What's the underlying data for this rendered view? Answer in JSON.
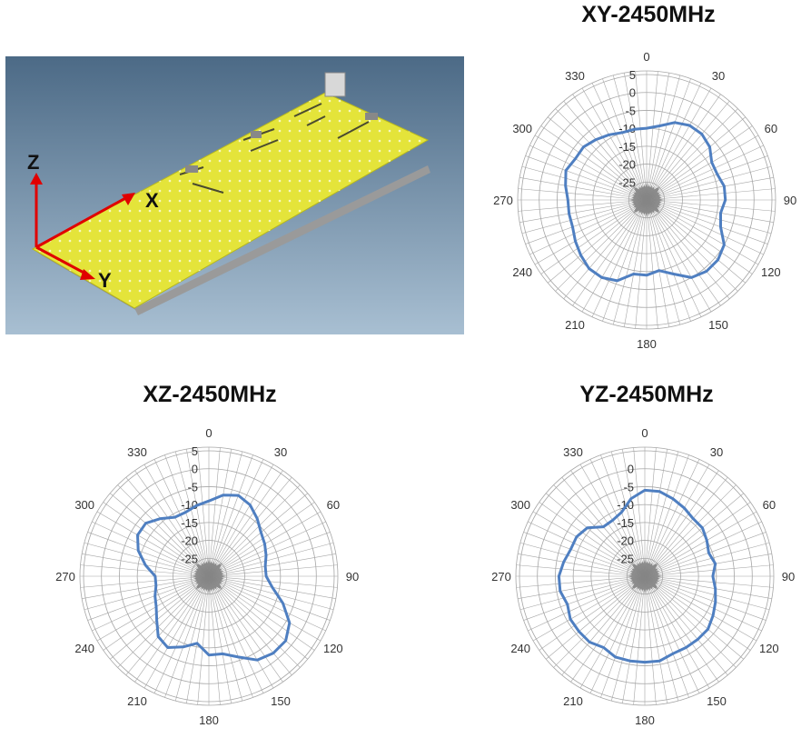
{
  "figure": {
    "axis_labels": {
      "z": "Z",
      "x": "X",
      "y": "Y"
    },
    "colors": {
      "series": "#4f7fc1",
      "grid": "#a6a6a6",
      "core": "#7f7f7f",
      "board": "#e4e43a",
      "backdrop_top": "#4c6a86",
      "backdrop_bottom": "#a8bfd2",
      "arrow": "#e00000"
    }
  },
  "chart_data": [
    {
      "type": "polar-line",
      "title": "XY-2450MHz",
      "angle_ticks": [
        "0",
        "30",
        "60",
        "90",
        "120",
        "150",
        "180",
        "210",
        "240",
        "270",
        "300",
        "330"
      ],
      "radial_ticks": [
        "5",
        "0",
        "-5",
        "-10",
        "-15",
        "-20",
        "-25"
      ],
      "rlim": [
        -30,
        5
      ],
      "grid": true,
      "series": [
        {
          "theta": [
            0,
            10,
            20,
            30,
            40,
            50,
            60,
            70,
            80,
            90,
            100,
            110,
            120,
            130,
            140,
            150,
            160,
            170,
            180,
            190,
            200,
            210,
            220,
            230,
            240,
            250,
            260,
            270,
            280,
            290,
            300,
            310,
            320,
            330,
            340,
            350
          ],
          "r": [
            -10,
            -9,
            -7,
            -6,
            -6,
            -7,
            -9,
            -9,
            -8,
            -8,
            -9,
            -8,
            -5,
            -4,
            -4,
            -5,
            -8,
            -10,
            -9,
            -9,
            -6,
            -5,
            -5,
            -6,
            -7,
            -8,
            -8,
            -8,
            -7,
            -6,
            -7,
            -7,
            -8,
            -9,
            -10,
            -10
          ]
        }
      ]
    },
    {
      "type": "polar-line",
      "title": "XZ-2450MHz",
      "angle_ticks": [
        "0",
        "30",
        "60",
        "90",
        "120",
        "150",
        "180",
        "210",
        "240",
        "270",
        "300",
        "330"
      ],
      "radial_ticks": [
        "5",
        "0",
        "-5",
        "-10",
        "-15",
        "-20",
        "-25"
      ],
      "rlim": [
        -30,
        5
      ],
      "grid": true,
      "series": [
        {
          "theta": [
            0,
            10,
            20,
            30,
            40,
            50,
            60,
            70,
            80,
            90,
            100,
            110,
            120,
            130,
            140,
            150,
            160,
            170,
            180,
            190,
            200,
            210,
            220,
            230,
            240,
            250,
            260,
            270,
            280,
            290,
            300,
            310,
            320,
            330,
            340,
            350
          ],
          "r": [
            -9,
            -7,
            -6,
            -7,
            -9,
            -11,
            -12,
            -13,
            -14,
            -14,
            -12,
            -8,
            -4,
            -2,
            -2,
            -3,
            -6,
            -8,
            -8,
            -11,
            -9,
            -7,
            -8,
            -11,
            -13,
            -14,
            -15,
            -15,
            -12,
            -9,
            -7,
            -7,
            -9,
            -11,
            -11,
            -10
          ]
        }
      ]
    },
    {
      "type": "polar-line",
      "title": "YZ-2450MHz",
      "angle_ticks": [
        "0",
        "30",
        "60",
        "90",
        "120",
        "150",
        "180",
        "210",
        "240",
        "270",
        "300",
        "330"
      ],
      "radial_ticks": [
        "0",
        "-5",
        "-10",
        "-15",
        "-20",
        "-25"
      ],
      "rlim": [
        -30,
        5
      ],
      "grid": true,
      "series": [
        {
          "theta": [
            0,
            10,
            20,
            30,
            40,
            50,
            60,
            70,
            80,
            90,
            100,
            110,
            120,
            130,
            140,
            150,
            160,
            170,
            180,
            190,
            200,
            210,
            220,
            230,
            240,
            250,
            260,
            270,
            280,
            290,
            300,
            310,
            320,
            330,
            340,
            350
          ],
          "r": [
            -6,
            -6,
            -7,
            -8,
            -9,
            -9,
            -10,
            -11,
            -10,
            -11,
            -10,
            -9,
            -8,
            -7,
            -7,
            -7,
            -7,
            -6,
            -6,
            -6,
            -6,
            -7,
            -6,
            -6,
            -6,
            -7,
            -6,
            -6,
            -7,
            -8,
            -8,
            -9,
            -12,
            -12,
            -11,
            -8
          ]
        }
      ]
    }
  ]
}
